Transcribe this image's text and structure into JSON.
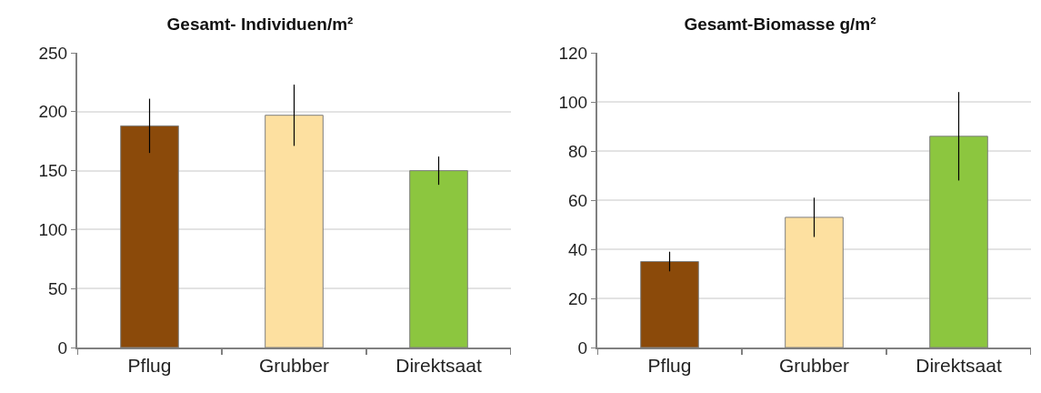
{
  "chart_data": [
    {
      "type": "bar",
      "title": "Gesamt- Individuen/m²",
      "categories": [
        "Pflug",
        "Grubber",
        "Direktsaat"
      ],
      "values": [
        188,
        197,
        150
      ],
      "errors": [
        23,
        26,
        12
      ],
      "colors": [
        "#8b4a0a",
        "#fde0a0",
        "#8cc63f"
      ],
      "ylim": [
        0,
        250
      ],
      "yticks": [
        0,
        50,
        100,
        150,
        200,
        250
      ],
      "grid": "y"
    },
    {
      "type": "bar",
      "title": "Gesamt-Biomasse g/m²",
      "categories": [
        "Pflug",
        "Grubber",
        "Direktsaat"
      ],
      "values": [
        35,
        53,
        86
      ],
      "errors": [
        4,
        8,
        18
      ],
      "colors": [
        "#8b4a0a",
        "#fde0a0",
        "#8cc63f"
      ],
      "ylim": [
        0,
        120
      ],
      "yticks": [
        0,
        20,
        40,
        60,
        80,
        100,
        120
      ],
      "grid": "y"
    }
  ]
}
